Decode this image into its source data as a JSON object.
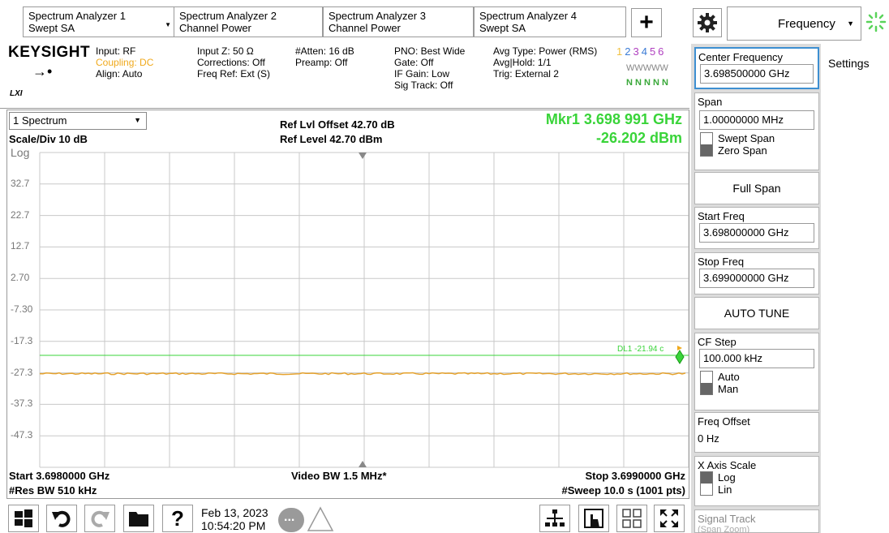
{
  "tabs": [
    {
      "line1": "Spectrum Analyzer 1",
      "line2": "Swept SA"
    },
    {
      "line1": "Spectrum Analyzer 2",
      "line2": "Channel Power"
    },
    {
      "line1": "Spectrum Analyzer 3",
      "line2": "Channel Power"
    },
    {
      "line1": "Spectrum Analyzer 4",
      "line2": "Swept SA"
    }
  ],
  "top_right": {
    "menu_label": "Frequency",
    "settings_label": "Settings"
  },
  "brand": {
    "name": "KEYSIGHT",
    "lxi": "LXI"
  },
  "header": {
    "c1": [
      "Input: RF",
      "Coupling: DC",
      "Align: Auto"
    ],
    "c2": [
      "Input Z: 50 Ω",
      "Corrections: Off",
      "Freq Ref: Ext (S)"
    ],
    "c3": [
      "#Atten: 16 dB",
      "Preamp: Off"
    ],
    "c4": [
      "PNO: Best Wide",
      "Gate: Off",
      "IF Gain: Low",
      "Sig Track: Off"
    ],
    "c5": [
      "Avg Type: Power (RMS)",
      "Avg|Hold: 1/1",
      "Trig: External 2"
    ],
    "trace_nums": [
      "1",
      "2",
      "3",
      "4",
      "5",
      "6"
    ],
    "trace_types": "WWWWW",
    "trace_dets": "N N N N N"
  },
  "plot": {
    "window_select": "1 Spectrum",
    "ref_offset": "Ref Lvl Offset 42.70 dB",
    "ref_level": "Ref Level 42.70 dBm",
    "marker_label": "Mkr1  3.698 991 GHz",
    "marker_value": "-26.202 dBm",
    "scale": "Scale/Div 10 dB",
    "log": "Log",
    "y_ticks": [
      "32.7",
      "22.7",
      "12.7",
      "2.70",
      "-7.30",
      "-17.3",
      "-27.3",
      "-37.3",
      "-47.3"
    ],
    "dl_label": "DL1 -21.94 c",
    "start": "Start 3.6980000 GHz",
    "res_bw": "#Res BW 510 kHz",
    "video_bw": "Video BW 1.5 MHz*",
    "stop": "Stop 3.6990000 GHz",
    "sweep": "#Sweep 10.0 s (1001 pts)",
    "colors": {
      "trace": "#e6a32e",
      "display_line": "#39d439",
      "grid": "#c8c8c8"
    }
  },
  "softkeys": {
    "center_freq": {
      "label": "Center Frequency",
      "value": "3.698500000 GHz"
    },
    "span": {
      "label": "Span",
      "value": "1.00000000 MHz",
      "opt1": "Swept Span",
      "opt2": "Zero Span"
    },
    "full_span": "Full Span",
    "start_freq": {
      "label": "Start Freq",
      "value": "3.698000000 GHz"
    },
    "stop_freq": {
      "label": "Stop Freq",
      "value": "3.699000000 GHz"
    },
    "auto_tune": "AUTO TUNE",
    "cf_step": {
      "label": "CF Step",
      "value": "100.000 kHz",
      "opt1": "Auto",
      "opt2": "Man"
    },
    "freq_offset": {
      "label": "Freq Offset",
      "value": "0 Hz"
    },
    "x_axis": {
      "label": "X Axis Scale",
      "opt1": "Log",
      "opt2": "Lin"
    },
    "signal_track": {
      "label": "Signal Track",
      "sub": "(Span Zoom)"
    }
  },
  "statusbar": {
    "date": "Feb 13, 2023",
    "time": "10:54:20 PM"
  }
}
